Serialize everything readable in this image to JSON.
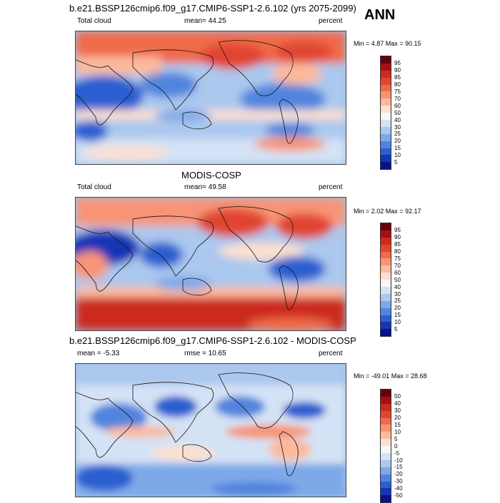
{
  "chart_data": [
    {
      "type": "heatmap",
      "title": "b.e21.BSSP126cmip6.f09_g17.CMIP6-SSP1-2.6.102 (yrs 2075-2099)",
      "season": "ANN",
      "variable": "Total cloud",
      "mean_label": "mean=",
      "mean": "44.25",
      "units": "percent",
      "minmax": "Min =   4.87 Max =  90.15",
      "colorbar_levels": [
        "95",
        "90",
        "85",
        "80",
        "75",
        "70",
        "60",
        "50",
        "40",
        "30",
        "25",
        "20",
        "15",
        "10",
        "5"
      ]
    },
    {
      "type": "heatmap",
      "title": "MODIS-COSP",
      "variable": "Total cloud",
      "mean_label": "mean=",
      "mean": "49.58",
      "units": "percent",
      "minmax": "Min =   2.02 Max =  92.17",
      "colorbar_levels": [
        "95",
        "90",
        "85",
        "80",
        "75",
        "70",
        "60",
        "50",
        "40",
        "30",
        "25",
        "20",
        "15",
        "10",
        "5"
      ]
    },
    {
      "type": "heatmap",
      "title": "b.e21.BSSP126cmip6.f09_g17.CMIP6-SSP1-2.6.102 - MODIS-COSP",
      "mean_label": "mean =",
      "mean": "-5.33",
      "rmse_label": "rmse =",
      "rmse": "10.65",
      "units": "percent",
      "minmax": "Min = -49.01 Max =  28.68",
      "colorbar_levels": [
        "50",
        "40",
        "30",
        "20",
        "15",
        "10",
        "5",
        "0",
        "-5",
        "-10",
        "-15",
        "-20",
        "-30",
        "-40",
        "-50"
      ]
    }
  ],
  "colors": {
    "palette": [
      "#67000d",
      "#a50f15",
      "#cb2a1c",
      "#e14530",
      "#f06a4a",
      "#f89474",
      "#fcb99c",
      "#fde0cf",
      "#f7f7f7",
      "#d4e2f5",
      "#abc8ee",
      "#7ea9e8",
      "#5185dd",
      "#2c5fd0",
      "#1535b5",
      "#08128a"
    ]
  }
}
